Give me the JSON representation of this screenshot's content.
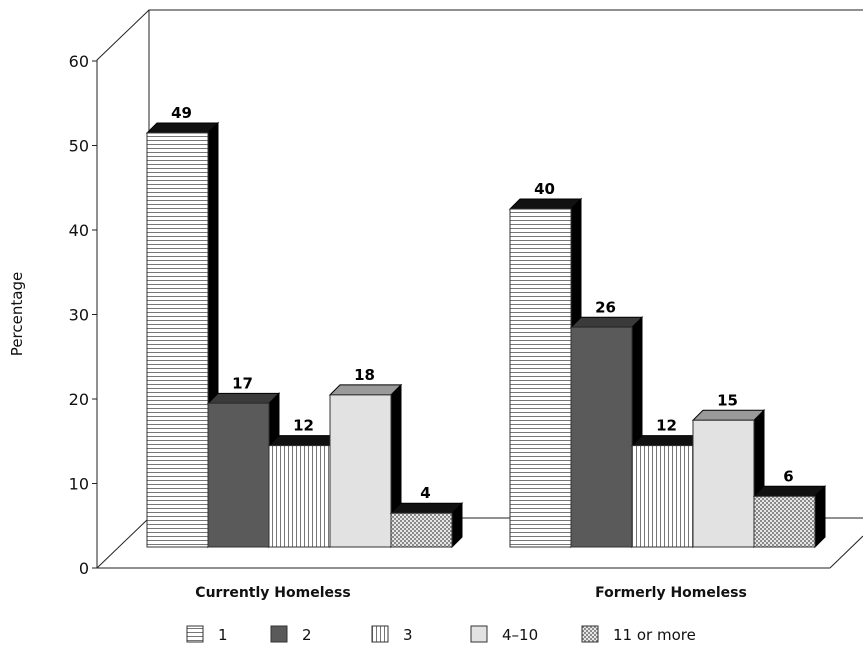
{
  "chart_data": {
    "type": "bar",
    "style": "3d-clustered",
    "ylabel": "Percentage",
    "xlabel": "",
    "ylim": [
      0,
      60
    ],
    "yticks": [
      "0",
      "10",
      "20",
      "30",
      "40",
      "50",
      "60"
    ],
    "grid": false,
    "legend_position": "bottom",
    "categories": [
      "Currently Homeless",
      "Formerly Homeless"
    ],
    "series": [
      {
        "name": "1",
        "values": [
          49,
          40
        ],
        "pattern": "horizontal-lines",
        "color": "#ffffff"
      },
      {
        "name": "2",
        "values": [
          17,
          26
        ],
        "pattern": "solid",
        "color": "#5a5a5a"
      },
      {
        "name": "3",
        "values": [
          12,
          12
        ],
        "pattern": "vertical-lines",
        "color": "#ffffff"
      },
      {
        "name": "4–10",
        "values": [
          18,
          15
        ],
        "pattern": "solid",
        "color": "#e2e2e2"
      },
      {
        "name": "11 or more",
        "values": [
          4,
          6
        ],
        "pattern": "checker",
        "color": "#d8d8d8"
      }
    ],
    "data_labels": [
      [
        "49",
        "17",
        "12",
        "18",
        "4"
      ],
      [
        "40",
        "26",
        "12",
        "15",
        "6"
      ]
    ]
  }
}
